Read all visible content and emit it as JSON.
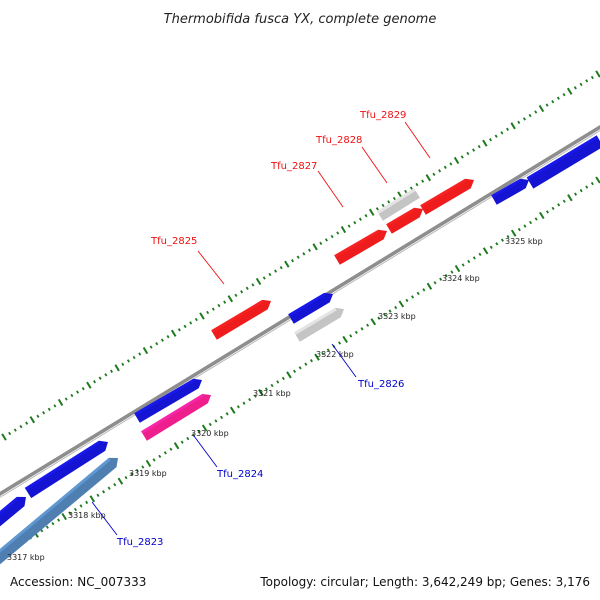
{
  "title": "Thermobifida fusca YX, complete genome",
  "accession": "Accession: NC_007333",
  "summary": "Topology: circular; Length: 3,642,249 bp; Genes: 3,176",
  "colors": {
    "backbone": "#8e8e8e",
    "forward_label": "#ee1111",
    "reverse_label": "#0000cc",
    "tick": "#1e7a1e",
    "red": "#ee1c1c",
    "blue": "#1414d2",
    "gray": "#c4c4c4",
    "pink": "#ee1f8c",
    "steel": "#4f7fb0"
  },
  "tick_labels": [
    "3317 kbp",
    "3318 kbp",
    "3319 kbp",
    "3320 kbp",
    "3321 kbp",
    "3322 kbp",
    "3323 kbp",
    "3324 kbp",
    "3325 kbp"
  ],
  "genes": [
    {
      "id": "g1",
      "kind": "blue"
    },
    {
      "id": "g2",
      "kind": "blue"
    },
    {
      "id": "g3",
      "kind": "steel"
    },
    {
      "id": "g4",
      "kind": "blue"
    },
    {
      "id": "g5",
      "kind": "pink"
    },
    {
      "id": "g6",
      "kind": "red"
    },
    {
      "id": "g7",
      "kind": "blue"
    },
    {
      "id": "g8",
      "kind": "gray"
    },
    {
      "id": "g9",
      "kind": "red"
    },
    {
      "id": "g10",
      "kind": "gray"
    },
    {
      "id": "g11",
      "kind": "red"
    },
    {
      "id": "g12",
      "kind": "red"
    },
    {
      "id": "g13",
      "kind": "blue"
    },
    {
      "id": "g14",
      "kind": "blue"
    }
  ],
  "gene_labels": [
    {
      "text": "Tfu_2823",
      "strand": "reverse"
    },
    {
      "text": "Tfu_2824",
      "strand": "reverse"
    },
    {
      "text": "Tfu_2825",
      "strand": "forward"
    },
    {
      "text": "Tfu_2826",
      "strand": "reverse"
    },
    {
      "text": "Tfu_2827",
      "strand": "forward"
    },
    {
      "text": "Tfu_2828",
      "strand": "forward"
    },
    {
      "text": "Tfu_2829",
      "strand": "forward"
    }
  ]
}
